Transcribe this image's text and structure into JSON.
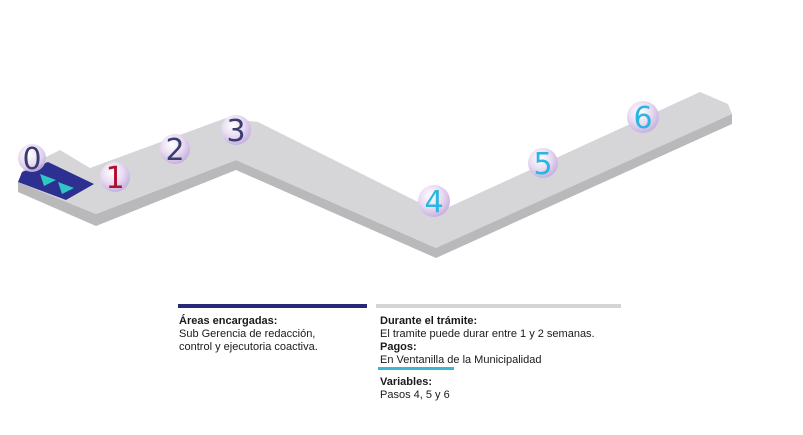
{
  "steps": [
    {
      "number": "0",
      "color": "#3a3e6e"
    },
    {
      "number": "1",
      "color": "#b01030"
    },
    {
      "number": "2",
      "color": "#3a3e6e"
    },
    {
      "number": "3",
      "color": "#3a3e6e"
    },
    {
      "number": "4",
      "color": "#29b6e0"
    },
    {
      "number": "5",
      "color": "#29b6e0"
    },
    {
      "number": "6",
      "color": "#29b6e0"
    }
  ],
  "colors": {
    "path": "#d6d6d8",
    "path_side": "#b9b9bc",
    "active": "#2d2f91",
    "arrow": "#2ec8c4",
    "bar_areas": "#27287a",
    "bar_duration": "#d4d4d4",
    "bar_payments": "#3ab8d0"
  },
  "legend": {
    "areas_title": "Áreas encargadas:",
    "areas_line1": "Sub Gerencia de redacción,",
    "areas_line2": "control y ejecutoria coactiva.",
    "duration_title": "Durante el trámite:",
    "duration_text": "El tramite puede durar entre 1 y 2 semanas.",
    "payments_title": "Pagos:",
    "payments_text": "En Ventanilla de la Municipalidad",
    "variables_title": "Variables:",
    "variables_text": "Pasos 4, 5 y 6"
  }
}
